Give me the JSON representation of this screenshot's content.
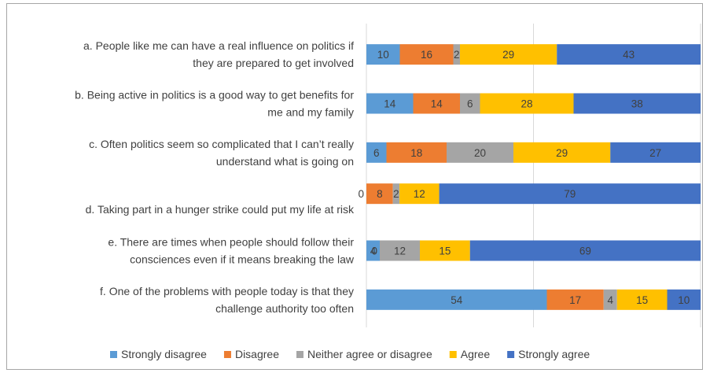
{
  "chart_data": {
    "type": "bar",
    "orientation": "horizontal",
    "stacked": true,
    "percent_stacked": true,
    "grid": "vertical",
    "legend_position": "bottom",
    "title": "",
    "xlabel": "",
    "ylabel": "",
    "categories": [
      [
        "a. People like me can have a real influence on politics if",
        "they are prepared to get involved"
      ],
      [
        "b. Being active in politics is a good way to get benefits for",
        "me and my family"
      ],
      [
        "c. Often politics seem so complicated that I can’t really",
        "understand what is going on"
      ],
      [
        "d. Taking part in a hunger strike could put my life at risk"
      ],
      [
        "e. There are times when people should follow their",
        "consciences even if it means breaking the law"
      ],
      [
        "f. One of the problems with people today is that they",
        "challenge authority too often"
      ]
    ],
    "series": [
      {
        "name": "Strongly disagree",
        "color": "#5b9bd5",
        "values": [
          10,
          14,
          6,
          0,
          4,
          54
        ]
      },
      {
        "name": "Disagree",
        "color": "#ed7d31",
        "values": [
          16,
          14,
          18,
          8,
          0,
          17
        ]
      },
      {
        "name": "Neither agree or disagree",
        "color": "#a5a5a5",
        "values": [
          2,
          6,
          20,
          2,
          12,
          4
        ]
      },
      {
        "name": "Agree",
        "color": "#ffc000",
        "values": [
          29,
          28,
          29,
          12,
          15,
          15
        ]
      },
      {
        "name": "Strongly agree",
        "color": "#4472c4",
        "values": [
          43,
          38,
          27,
          79,
          69,
          10
        ]
      }
    ]
  }
}
